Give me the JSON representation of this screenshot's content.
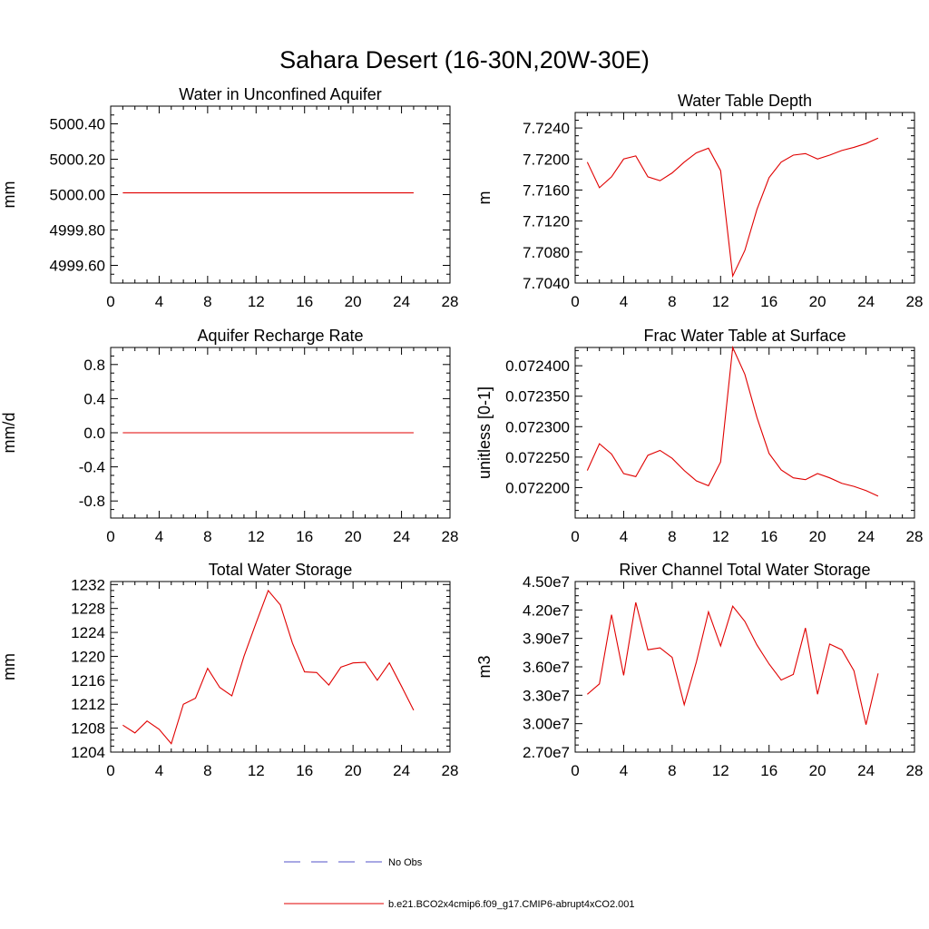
{
  "figure_title": "Sahara Desert (16-30N,20W-30E)",
  "legend": {
    "items": [
      {
        "label": "No Obs",
        "color": "#5050c8",
        "dash": true
      },
      {
        "label": "b.e21.BCO2x4cmip6.f09_g17.CMIP6-abrupt4xCO2.001",
        "color": "#e00000",
        "dash": false
      }
    ]
  },
  "chart_data": [
    {
      "type": "line",
      "title": "Water in Unconfined Aquifer",
      "ylabel": "mm",
      "xlim": [
        0,
        28
      ],
      "ylim": [
        4999.5,
        5000.5
      ],
      "xticks": [
        0,
        4,
        8,
        12,
        16,
        20,
        24,
        28
      ],
      "xtick_labels": [
        "0",
        "4",
        "8",
        "12",
        "16",
        "20",
        "24",
        "28"
      ],
      "yticks": [
        4999.6,
        4999.8,
        5000.0,
        5000.2,
        5000.4
      ],
      "ytick_labels": [
        "4999.60",
        "4999.80",
        "5000.00",
        "5000.20",
        "5000.40"
      ],
      "series": [
        {
          "color": "#e00000",
          "x": [
            1,
            2,
            3,
            4,
            5,
            6,
            7,
            8,
            9,
            10,
            11,
            12,
            13,
            14,
            15,
            16,
            17,
            18,
            19,
            20,
            21,
            22,
            23,
            24,
            25
          ],
          "y": [
            5000.01,
            5000.01,
            5000.01,
            5000.01,
            5000.01,
            5000.01,
            5000.01,
            5000.01,
            5000.01,
            5000.01,
            5000.01,
            5000.01,
            5000.01,
            5000.01,
            5000.01,
            5000.01,
            5000.01,
            5000.01,
            5000.01,
            5000.01,
            5000.01,
            5000.01,
            5000.01,
            5000.01,
            5000.01
          ]
        }
      ]
    },
    {
      "type": "line",
      "title": "Water Table Depth",
      "ylabel": "m",
      "xlim": [
        0,
        28
      ],
      "ylim": [
        7.704,
        7.726
      ],
      "xticks": [
        0,
        4,
        8,
        12,
        16,
        20,
        24,
        28
      ],
      "xtick_labels": [
        "0",
        "4",
        "8",
        "12",
        "16",
        "20",
        "24",
        "28"
      ],
      "yticks": [
        7.704,
        7.708,
        7.712,
        7.716,
        7.72,
        7.724
      ],
      "ytick_labels": [
        "7.7040",
        "7.7080",
        "7.7120",
        "7.7160",
        "7.7200",
        "7.7240"
      ],
      "series": [
        {
          "color": "#e00000",
          "x": [
            1,
            2,
            3,
            4,
            5,
            6,
            7,
            8,
            9,
            10,
            11,
            12,
            13,
            14,
            15,
            16,
            17,
            18,
            19,
            20,
            21,
            22,
            23,
            24,
            25
          ],
          "y": [
            7.7196,
            7.7163,
            7.7177,
            7.72,
            7.7204,
            7.7177,
            7.7172,
            7.7182,
            7.7196,
            7.7208,
            7.7214,
            7.7185,
            7.7049,
            7.7082,
            7.7135,
            7.7176,
            7.7196,
            7.7205,
            7.7207,
            7.72,
            7.7205,
            7.7211,
            7.7215,
            7.722,
            7.7227
          ]
        }
      ]
    },
    {
      "type": "line",
      "title": "Aquifer Recharge Rate",
      "ylabel": "mm/d",
      "xlim": [
        0,
        28
      ],
      "ylim": [
        -1.0,
        1.0
      ],
      "xticks": [
        0,
        4,
        8,
        12,
        16,
        20,
        24,
        28
      ],
      "xtick_labels": [
        "0",
        "4",
        "8",
        "12",
        "16",
        "20",
        "24",
        "28"
      ],
      "yticks": [
        -0.8,
        -0.4,
        0.0,
        0.4,
        0.8
      ],
      "ytick_labels": [
        "-0.8",
        "-0.4",
        "0.0",
        "0.4",
        "0.8"
      ],
      "series": [
        {
          "color": "#e00000",
          "x": [
            1,
            2,
            3,
            4,
            5,
            6,
            7,
            8,
            9,
            10,
            11,
            12,
            13,
            14,
            15,
            16,
            17,
            18,
            19,
            20,
            21,
            22,
            23,
            24,
            25
          ],
          "y": [
            0,
            0,
            0,
            0,
            0,
            0,
            0,
            0,
            0,
            0,
            0,
            0,
            0,
            0,
            0,
            0,
            0,
            0,
            0,
            0,
            0,
            0,
            0,
            0,
            0
          ]
        }
      ]
    },
    {
      "type": "line",
      "title": "Frac Water Table at Surface",
      "ylabel": "unitless [0-1]",
      "xlim": [
        0,
        28
      ],
      "ylim": [
        0.07215,
        0.07243
      ],
      "xticks": [
        0,
        4,
        8,
        12,
        16,
        20,
        24,
        28
      ],
      "xtick_labels": [
        "0",
        "4",
        "8",
        "12",
        "16",
        "20",
        "24",
        "28"
      ],
      "yticks": [
        0.0722,
        0.07225,
        0.0723,
        0.07235,
        0.0724
      ],
      "ytick_labels": [
        "0.072200",
        "0.072250",
        "0.072300",
        "0.072350",
        "0.072400"
      ],
      "series": [
        {
          "color": "#e00000",
          "x": [
            1,
            2,
            3,
            4,
            5,
            6,
            7,
            8,
            9,
            10,
            11,
            12,
            13,
            14,
            15,
            16,
            17,
            18,
            19,
            20,
            21,
            22,
            23,
            24,
            25
          ],
          "y": [
            0.072228,
            0.072272,
            0.072255,
            0.072223,
            0.072218,
            0.072253,
            0.072261,
            0.072248,
            0.072228,
            0.072211,
            0.072203,
            0.072242,
            0.07243,
            0.072386,
            0.072315,
            0.072256,
            0.072229,
            0.072216,
            0.072213,
            0.072223,
            0.072216,
            0.072207,
            0.072202,
            0.072195,
            0.072186
          ]
        }
      ]
    },
    {
      "type": "line",
      "title": "Total Water Storage",
      "ylabel": "mm",
      "xlim": [
        0,
        28
      ],
      "ylim": [
        1204,
        1232.5
      ],
      "xticks": [
        0,
        4,
        8,
        12,
        16,
        20,
        24,
        28
      ],
      "xtick_labels": [
        "0",
        "4",
        "8",
        "12",
        "16",
        "20",
        "24",
        "28"
      ],
      "yticks": [
        1204,
        1208,
        1212,
        1216,
        1220,
        1224,
        1228,
        1232
      ],
      "ytick_labels": [
        "1204",
        "1208",
        "1212",
        "1216",
        "1220",
        "1224",
        "1228",
        "1232"
      ],
      "series": [
        {
          "color": "#e00000",
          "x": [
            1,
            2,
            3,
            4,
            5,
            6,
            7,
            8,
            9,
            10,
            11,
            12,
            13,
            14,
            15,
            16,
            17,
            18,
            19,
            20,
            21,
            22,
            23,
            24,
            25
          ],
          "y": [
            1208.5,
            1207.2,
            1209.2,
            1207.8,
            1205.4,
            1212.0,
            1213.0,
            1218.0,
            1214.8,
            1213.4,
            1220.0,
            1225.6,
            1231.0,
            1228.6,
            1222.2,
            1217.4,
            1217.3,
            1215.2,
            1218.2,
            1218.9,
            1219.0,
            1216.0,
            1218.9,
            1215.0,
            1211.0
          ]
        }
      ]
    },
    {
      "type": "line",
      "title": "River Channel Total Water Storage",
      "ylabel": "m3",
      "xlim": [
        0,
        28
      ],
      "ylim": [
        27000000.0,
        45000000.0
      ],
      "xticks": [
        0,
        4,
        8,
        12,
        16,
        20,
        24,
        28
      ],
      "xtick_labels": [
        "0",
        "4",
        "8",
        "12",
        "16",
        "20",
        "24",
        "28"
      ],
      "yticks": [
        27000000.0,
        30000000.0,
        33000000.0,
        36000000.0,
        39000000.0,
        42000000.0,
        45000000.0
      ],
      "ytick_labels": [
        "2.70e7",
        "3.00e7",
        "3.30e7",
        "3.60e7",
        "3.90e7",
        "4.20e7",
        "4.50e7"
      ],
      "series": [
        {
          "color": "#e00000",
          "x": [
            1,
            2,
            3,
            4,
            5,
            6,
            7,
            8,
            9,
            10,
            11,
            12,
            13,
            14,
            15,
            16,
            17,
            18,
            19,
            20,
            21,
            22,
            23,
            24,
            25
          ],
          "y": [
            33100000.0,
            34200000.0,
            41500000.0,
            35100000.0,
            42800000.0,
            37800000.0,
            38000000.0,
            37000000.0,
            32000000.0,
            36500000.0,
            41800000.0,
            38200000.0,
            42400000.0,
            40800000.0,
            38300000.0,
            36300000.0,
            34600000.0,
            35200000.0,
            40100000.0,
            33100000.0,
            38400000.0,
            37800000.0,
            35600000.0,
            29900000.0,
            35300000.0
          ]
        }
      ]
    }
  ]
}
